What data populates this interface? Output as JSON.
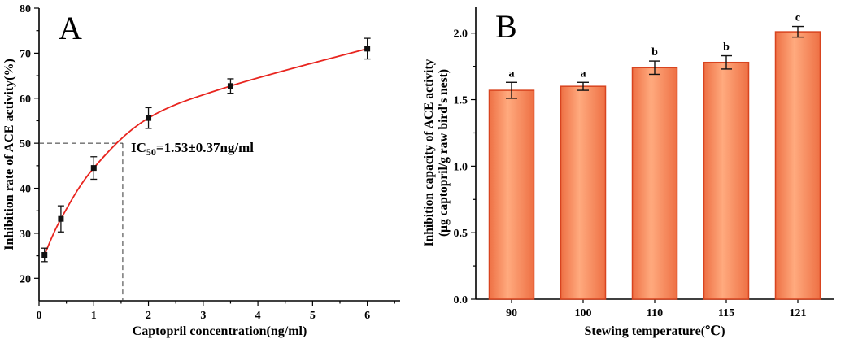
{
  "figure": {
    "background": "#ffffff",
    "description": "Two-panel scientific figure: A) captopril dose-response scatter with fit curve and IC50 annotation; B) bar chart of ACE inhibition capacity vs stewing temperature"
  },
  "chart_data": [
    {
      "type": "scatter",
      "panel_label": "A",
      "xlabel": "Captopril concentration(ng/ml)",
      "ylabel": "Inhibition rate of ACE activity(%)",
      "xlim": [
        0,
        6.6
      ],
      "ylim": [
        15,
        80
      ],
      "xticks": [
        0,
        1,
        2,
        3,
        4,
        5,
        6
      ],
      "yticks": [
        20,
        30,
        40,
        50,
        60,
        70,
        80
      ],
      "x": [
        0.1,
        0.4,
        1,
        2,
        3.5,
        6
      ],
      "y": [
        25.2,
        33.2,
        44.5,
        55.6,
        62.7,
        71.0
      ],
      "yerr": [
        1.5,
        2.9,
        2.5,
        2.3,
        1.6,
        2.3
      ],
      "marker": "square",
      "marker_color": "#111111",
      "line_color": "#e8251f",
      "annotation": {
        "text_prefix": "IC",
        "text_sub": "50",
        "text_suffix": "=1.53±0.37ng/ml",
        "x": 1.68,
        "y": 48.0
      },
      "reference": {
        "y": 50,
        "x": 1.53
      },
      "grid": false,
      "legend": "none"
    },
    {
      "type": "bar",
      "panel_label": "B",
      "xlabel": "Stewing temperature(℃)",
      "ylabel_line1": "Inhibition capacity of ACE activity",
      "ylabel_line2": "(μg captopril/g raw bird's nest)",
      "categories": [
        "90",
        "100",
        "110",
        "115",
        "121"
      ],
      "values": [
        1.57,
        1.6,
        1.74,
        1.78,
        2.01
      ],
      "errors": [
        0.06,
        0.03,
        0.05,
        0.05,
        0.04
      ],
      "sig_labels": [
        "a",
        "a",
        "b",
        "b",
        "c"
      ],
      "ylim": [
        0,
        2.2
      ],
      "yticks": [
        0,
        0.5,
        1,
        1.5,
        2
      ],
      "ytick_decimals": 1,
      "bar_fill_edge": "#ee7044",
      "bar_fill_center": "#ffaa7e",
      "bar_border": "#d8441f",
      "error_color": "#111111",
      "grid": false,
      "legend": "none"
    }
  ]
}
